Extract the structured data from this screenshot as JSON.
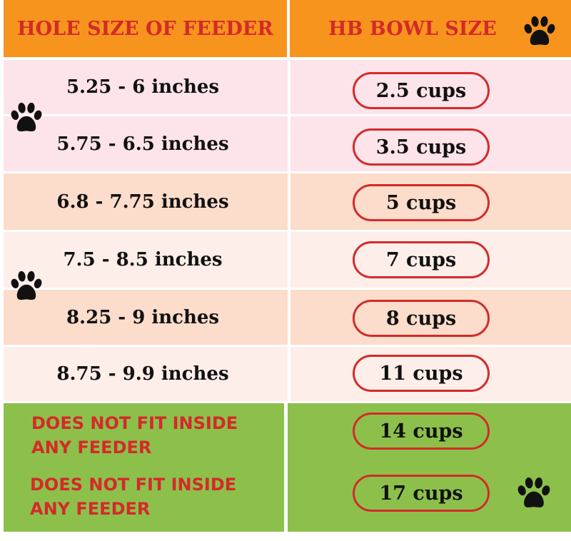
{
  "header": {
    "columns": [
      "HOLE SIZE OF FEEDER",
      "HB BOWL SIZE"
    ]
  },
  "table": {
    "rows": [
      {
        "size": "5.25 - 6 inches",
        "bowl": "2.5 cups"
      },
      {
        "size": "5.75 - 6.5 inches",
        "bowl": "3.5 cups"
      },
      {
        "size": "6.8 - 7.75 inches",
        "bowl": "5 cups"
      },
      {
        "size": "7.5 - 8.5 inches",
        "bowl": "7 cups"
      },
      {
        "size": "8.25 - 9 inches",
        "bowl": "8 cups"
      },
      {
        "size": "8.75 - 9.9 inches",
        "bowl": "11 cups"
      },
      {
        "size": [
          "DOES NOT FIT INSIDE",
          "ANY FEEDER"
        ],
        "bowl": "14 cups"
      },
      {
        "size": [
          "DOES NOT FIT INSIDE",
          "ANY FEEDER"
        ],
        "bowl": "17 cups"
      }
    ]
  }
}
